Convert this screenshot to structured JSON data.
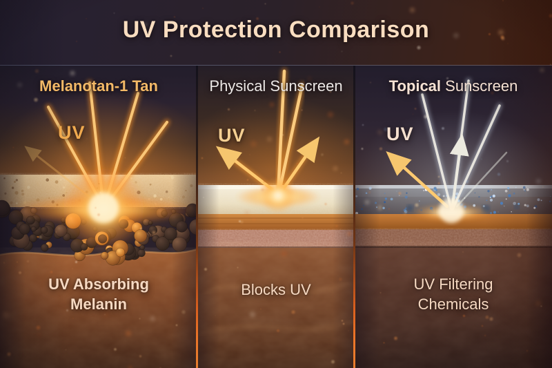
{
  "title": "UV Protection Comparison",
  "panels": [
    {
      "heading_bold": "Melanotan-1 Tan",
      "heading_regular": "",
      "uv_label": "UV",
      "caption_line1": "UV Absorbing",
      "caption_line2": "Melanin"
    },
    {
      "heading_bold": "",
      "heading_regular": "Physical Sunscreen",
      "uv_label": "UV",
      "caption_line1": "Blocks UV",
      "caption_line2": ""
    },
    {
      "heading_bold": "Topical",
      "heading_regular": " Sunscreen",
      "uv_label": "UV",
      "caption_line1": "UV Filtering",
      "caption_line2": "Chemicals"
    }
  ],
  "icons": {
    "uv_rays": "converging-light-rays",
    "reflected_arrows": "bounce-back-arrows",
    "transmitted_arrows": "upward-escape-arrows"
  },
  "colors": {
    "title": "#f9ddc0",
    "heading_gold": "#f3b967",
    "heading_white": "#ece8e6",
    "heading_peach": "#f6e2d4",
    "uv_gold": "#efa94e",
    "uv_pale_gold": "#f4cf92",
    "uv_pale": "#f5e0cf",
    "caption": "#f6d9c2",
    "divider_glow": "#ff8a32"
  }
}
